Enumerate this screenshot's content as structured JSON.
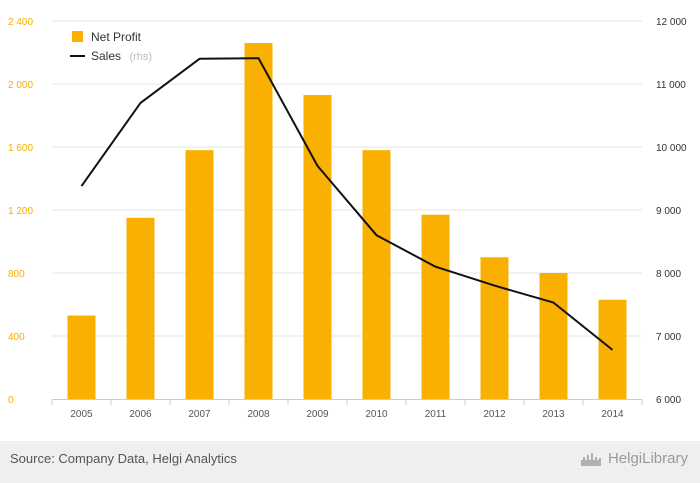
{
  "chart_data": {
    "type": "bar",
    "categories": [
      "2005",
      "2006",
      "2007",
      "2008",
      "2009",
      "2010",
      "2011",
      "2012",
      "2013",
      "2014"
    ],
    "series": [
      {
        "name": "Net Profit",
        "type": "bar",
        "axis": "left",
        "color": "#f9b000",
        "values": [
          530,
          1150,
          1580,
          2260,
          1930,
          1580,
          1170,
          900,
          800,
          630
        ]
      },
      {
        "name": "Sales",
        "name_note": "(rhs)",
        "type": "line",
        "axis": "right",
        "color": "#111111",
        "values": [
          9380,
          10700,
          11400,
          11410,
          9700,
          8600,
          8100,
          7800,
          7530,
          6780
        ]
      }
    ],
    "y_left": {
      "range": [
        0,
        2400
      ],
      "ticks": [
        0,
        400,
        800,
        1200,
        1600,
        2000,
        2400
      ],
      "tick_labels": [
        "0",
        "400",
        "800",
        "1 200",
        "1 600",
        "2 000",
        "2 400"
      ]
    },
    "y_right": {
      "range": [
        6000,
        12000
      ],
      "ticks": [
        6000,
        7000,
        8000,
        9000,
        10000,
        11000,
        12000
      ],
      "tick_labels": [
        "6 000",
        "7 000",
        "8 000",
        "9 000",
        "10 000",
        "11 000",
        "12 000"
      ]
    },
    "grid": true,
    "legend_position": "top-left",
    "colors": {
      "left_tick": "#f5b000",
      "grid": "#e6e6e6"
    }
  },
  "footer": {
    "source": "Source: Company Data, Helgi Analytics",
    "brand": "HelgiLibrary",
    "brand_icon": "skyline-logo-icon"
  }
}
